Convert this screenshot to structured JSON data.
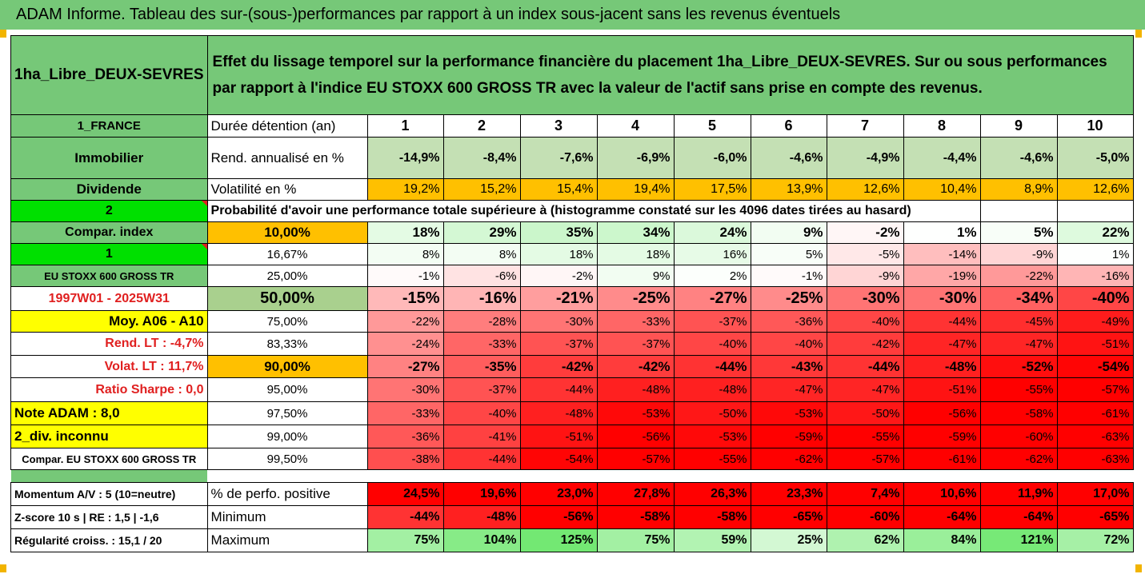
{
  "title": "ADAM Informe. Tableau des sur-(sous-)performances par rapport à un index sous-jacent sans les revenus éventuels",
  "header": {
    "fund_name": "1ha_Libre_DEUX-SEVRES",
    "description": "Effet du lissage temporel sur la performance financière du placement 1ha_Libre_DEUX-SEVRES. Sur ou sous performances par rapport à l'indice EU STOXX 600 GROSS TR avec la valeur de l'actif sans prise en compte des revenus."
  },
  "rows": {
    "duration": {
      "side": "1_FRANCE",
      "label": "Durée détention (an)",
      "values": [
        "1",
        "2",
        "3",
        "4",
        "5",
        "6",
        "7",
        "8",
        "9",
        "10"
      ]
    },
    "return": {
      "side": "Immobilier",
      "label": "Rend. annualisé en %",
      "values": [
        "-14,9%",
        "-8,4%",
        "-7,6%",
        "-6,9%",
        "-6,0%",
        "-4,6%",
        "-4,9%",
        "-4,4%",
        "-4,6%",
        "-5,0%"
      ]
    },
    "volatility": {
      "side": "Dividende",
      "label": "Volatilité en %",
      "values": [
        "19,2%",
        "15,2%",
        "15,4%",
        "19,4%",
        "17,5%",
        "13,9%",
        "12,6%",
        "10,4%",
        "8,9%",
        "12,6%"
      ]
    },
    "probability": {
      "side": "2",
      "label": "Probabilité d'avoir une performance totale supérieure à (histogramme constaté sur les 4096 dates tirées au hasard)"
    }
  },
  "percentile_rows": [
    {
      "side": "Compar. index",
      "pct": "10,00%",
      "values": [
        "18%",
        "29%",
        "35%",
        "34%",
        "24%",
        "9%",
        "-2%",
        "1%",
        "5%",
        "22%"
      ]
    },
    {
      "side": "1",
      "pct": "16,67%",
      "values": [
        "8%",
        "8%",
        "18%",
        "18%",
        "16%",
        "5%",
        "-5%",
        "-14%",
        "-9%",
        "1%"
      ]
    },
    {
      "side": "EU STOXX 600 GROSS TR",
      "pct": "25,00%",
      "values": [
        "-1%",
        "-6%",
        "-2%",
        "9%",
        "2%",
        "-1%",
        "-9%",
        "-19%",
        "-22%",
        "-16%"
      ]
    },
    {
      "side": "1997W01 - 2025W31",
      "pct": "50,00%",
      "values": [
        "-15%",
        "-16%",
        "-21%",
        "-25%",
        "-27%",
        "-25%",
        "-30%",
        "-30%",
        "-34%",
        "-40%"
      ]
    },
    {
      "side": "Moy. A06 - A10",
      "pct": "75,00%",
      "values": [
        "-22%",
        "-28%",
        "-30%",
        "-33%",
        "-37%",
        "-36%",
        "-40%",
        "-44%",
        "-45%",
        "-49%"
      ]
    },
    {
      "side": "Rend. LT :    -4,7%",
      "pct": "83,33%",
      "values": [
        "-24%",
        "-33%",
        "-37%",
        "-37%",
        "-40%",
        "-40%",
        "-42%",
        "-47%",
        "-47%",
        "-51%"
      ]
    },
    {
      "side": "Volat. LT :    11,7%",
      "pct": "90,00%",
      "values": [
        "-27%",
        "-35%",
        "-42%",
        "-42%",
        "-44%",
        "-43%",
        "-44%",
        "-48%",
        "-52%",
        "-54%"
      ]
    },
    {
      "side": "Ratio Sharpe :    0,0",
      "pct": "95,00%",
      "values": [
        "-30%",
        "-37%",
        "-44%",
        "-48%",
        "-48%",
        "-47%",
        "-47%",
        "-51%",
        "-55%",
        "-57%"
      ]
    },
    {
      "side": "Note ADAM : 8,0",
      "pct": "97,50%",
      "values": [
        "-33%",
        "-40%",
        "-48%",
        "-53%",
        "-50%",
        "-53%",
        "-50%",
        "-56%",
        "-58%",
        "-61%"
      ]
    },
    {
      "side": "2_div. inconnu",
      "pct": "99,00%",
      "values": [
        "-36%",
        "-41%",
        "-51%",
        "-56%",
        "-53%",
        "-59%",
        "-55%",
        "-59%",
        "-60%",
        "-63%"
      ]
    },
    {
      "side": "Compar. EU STOXX 600 GROSS TR",
      "pct": "99,50%",
      "values": [
        "-38%",
        "-44%",
        "-54%",
        "-57%",
        "-55%",
        "-62%",
        "-57%",
        "-61%",
        "-62%",
        "-63%"
      ]
    }
  ],
  "stats_rows": [
    {
      "side": "Momentum A/V : 5 (10=neutre)",
      "label": "% de perfo. positive",
      "values": [
        "24,5%",
        "19,6%",
        "23,0%",
        "27,8%",
        "26,3%",
        "23,3%",
        "7,4%",
        "10,6%",
        "11,9%",
        "17,0%"
      ]
    },
    {
      "side": "Z-score 10 s  |  RE : 1,5  |  -1,6",
      "label": "Minimum",
      "values": [
        "-44%",
        "-48%",
        "-56%",
        "-58%",
        "-58%",
        "-65%",
        "-60%",
        "-64%",
        "-64%",
        "-65%"
      ]
    },
    {
      "side": "Régularité croiss. : 15,1 / 20",
      "label": "Maximum",
      "values": [
        "75%",
        "104%",
        "125%",
        "75%",
        "59%",
        "25%",
        "62%",
        "84%",
        "121%",
        "72%"
      ]
    }
  ],
  "colors": {
    "header_green": "#76c878",
    "bright_green": "#00e000",
    "yellow": "#ffff00",
    "orange": "#ffc000",
    "return_green": "#c4e0b4",
    "positive_red": "#ff0000"
  }
}
